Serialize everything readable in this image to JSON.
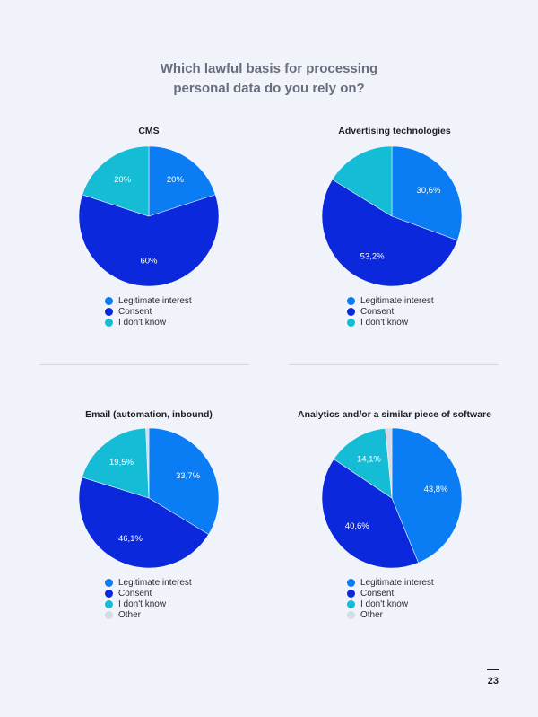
{
  "page_title": [
    "Which lawful basis for processing",
    "personal data do you rely on?"
  ],
  "page_number": "23",
  "colors": {
    "legitimate_interest": "#0a7cf4",
    "consent": "#0b28dd",
    "dont_know": "#14bcd6",
    "other": "#d6dae6"
  },
  "chart_data": [
    {
      "type": "pie",
      "title": "CMS",
      "series": [
        {
          "name": "Legitimate interest",
          "value": 20,
          "label": "20%",
          "color": "#0a7cf4"
        },
        {
          "name": "Consent",
          "value": 60,
          "label": "60%",
          "color": "#0b28dd"
        },
        {
          "name": "I don't know",
          "value": 20,
          "label": "20%",
          "color": "#14bcd6"
        }
      ],
      "legend": [
        "Legitimate interest",
        "Consent",
        "I don't know"
      ]
    },
    {
      "type": "pie",
      "title": "Advertising technologies",
      "series": [
        {
          "name": "Legitimate interest",
          "value": 30.6,
          "label": "30,6%",
          "color": "#0a7cf4"
        },
        {
          "name": "Consent",
          "value": 53.2,
          "label": "53,2%",
          "color": "#0b28dd"
        },
        {
          "name": "I don't know",
          "value": 16.2,
          "label": "",
          "color": "#14bcd6"
        }
      ],
      "legend": [
        "Legitimate interest",
        "Consent",
        "I don't know"
      ]
    },
    {
      "type": "pie",
      "title": "Email (automation, inbound)",
      "series": [
        {
          "name": "Legitimate interest",
          "value": 33.7,
          "label": "33,7%",
          "color": "#0a7cf4"
        },
        {
          "name": "Consent",
          "value": 46.1,
          "label": "46,1%",
          "color": "#0b28dd"
        },
        {
          "name": "I don't know",
          "value": 19.5,
          "label": "19,5%",
          "color": "#14bcd6"
        },
        {
          "name": "Other",
          "value": 0.7,
          "label": "",
          "color": "#d6dae6"
        }
      ],
      "legend": [
        "Legitimate interest",
        "Consent",
        "I don't know",
        "Other"
      ]
    },
    {
      "type": "pie",
      "title": "Analytics and/or a similar piece of software",
      "series": [
        {
          "name": "Legitimate interest",
          "value": 43.8,
          "label": "43,8%",
          "color": "#0a7cf4"
        },
        {
          "name": "Consent",
          "value": 40.6,
          "label": "40,6%",
          "color": "#0b28dd"
        },
        {
          "name": "I don't know",
          "value": 14.1,
          "label": "14,1%",
          "color": "#14bcd6"
        },
        {
          "name": "Other",
          "value": 1.5,
          "label": "",
          "color": "#d6dae6"
        }
      ],
      "legend": [
        "Legitimate interest",
        "Consent",
        "I don't know",
        "Other"
      ]
    }
  ]
}
